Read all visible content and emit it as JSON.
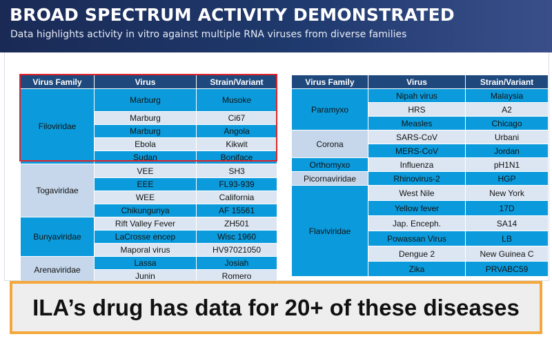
{
  "header": {
    "title": "BROAD SPECTRUM ACTIVITY DEMONSTRATED",
    "subtitle": "Data highlights activity in vitro against multiple RNA viruses from diverse families"
  },
  "colors": {
    "header_dark": "#1a2a55",
    "column_header": "#1f497d",
    "highlight_blue": "#0b9bdc",
    "light_blue": "#dce6f2",
    "family_light": "#c6d7eb",
    "red_outline": "#e32228",
    "banner_border": "#f4a73b"
  },
  "left_table": {
    "headers": [
      "Virus Family",
      "Virus",
      "Strain/Variant"
    ],
    "families": [
      "Filoviridae",
      "Togaviridae",
      "Bunyaviridae",
      "Arenaviridae"
    ],
    "rows": [
      [
        "Marburg",
        "Musoke"
      ],
      [
        "Marburg",
        "Ci67"
      ],
      [
        "Marburg",
        "Angola"
      ],
      [
        "Ebola",
        "Kikwit"
      ],
      [
        "Sudan",
        "Boniface"
      ],
      [
        "VEE",
        "SH3"
      ],
      [
        "EEE",
        "FL93-939"
      ],
      [
        "WEE",
        "California"
      ],
      [
        "Chikungunya",
        "AF 15561"
      ],
      [
        "Rift Valley Fever",
        "ZH501"
      ],
      [
        "LaCrosse encep",
        "Wisc 1960"
      ],
      [
        "Maporal virus",
        "HV97021050"
      ],
      [
        "Lassa",
        "Josiah"
      ],
      [
        "Junin",
        "Romero"
      ]
    ]
  },
  "right_table": {
    "headers": [
      "Virus Family",
      "Virus",
      "Strain/Variant"
    ],
    "families": [
      "Paramyxo",
      "Corona",
      "Orthomyxo",
      "Picornaviridae",
      "Flaviviridae"
    ],
    "rows": [
      [
        "Nipah virus",
        "Malaysia"
      ],
      [
        "HRS",
        "A2"
      ],
      [
        "Measles",
        "Chicago"
      ],
      [
        "SARS-CoV",
        "Urbani"
      ],
      [
        "MERS-CoV",
        "Jordan"
      ],
      [
        "Influenza",
        "pH1N1"
      ],
      [
        "Rhinovirus-2",
        "HGP"
      ],
      [
        "West Nile",
        "New York"
      ],
      [
        "Yellow fever",
        "17D"
      ],
      [
        "Jap. Enceph.",
        "SA14"
      ],
      [
        "Powassan Virus",
        "LB"
      ],
      [
        "Dengue 2",
        "New Guinea C"
      ],
      [
        "Zika",
        "PRVABC59"
      ]
    ]
  },
  "banner": {
    "text": "ILA’s drug has data for 20+ of these diseases"
  }
}
